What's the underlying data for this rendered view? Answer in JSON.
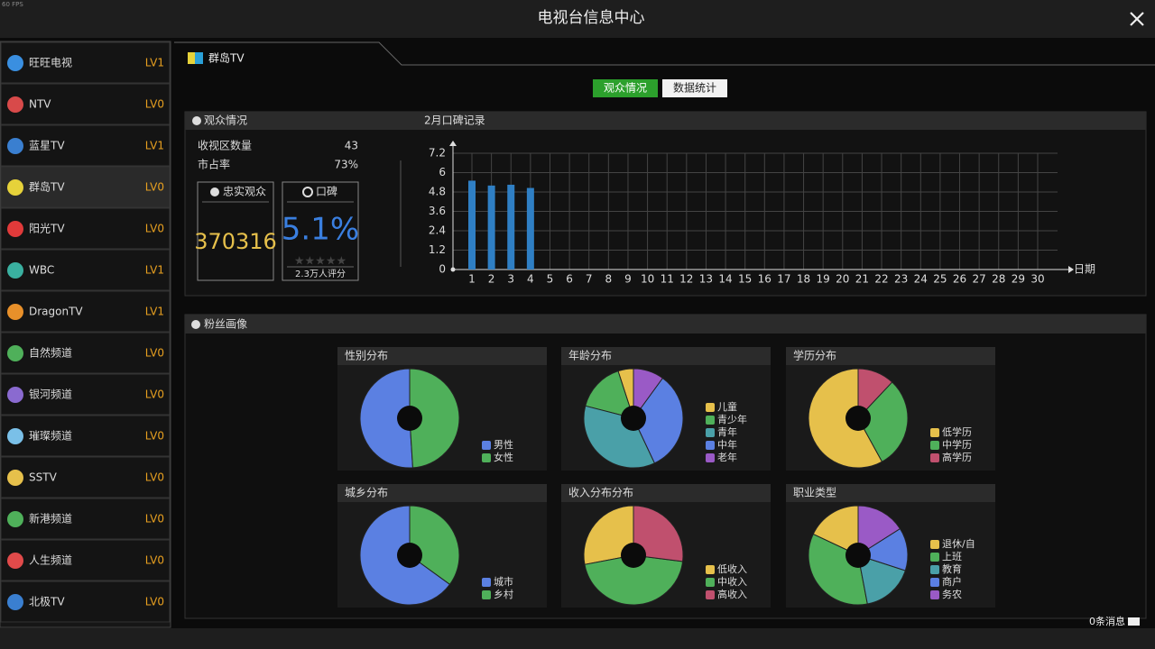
{
  "fps": "60 FPS",
  "header": {
    "title": "电视台信息中心"
  },
  "channels": [
    {
      "name": "旺旺电视",
      "level": "LV1"
    },
    {
      "name": "NTV",
      "level": "LV0"
    },
    {
      "name": "蓝星TV",
      "level": "LV1"
    },
    {
      "name": "群岛TV",
      "level": "LV0"
    },
    {
      "name": "阳光TV",
      "level": "LV0"
    },
    {
      "name": "WBC",
      "level": "LV1"
    },
    {
      "name": "DragonTV",
      "level": "LV1"
    },
    {
      "name": "自然频道",
      "level": "LV0"
    },
    {
      "name": "银河频道",
      "level": "LV0"
    },
    {
      "name": "璀璨频道",
      "level": "LV0"
    },
    {
      "name": "SSTV",
      "level": "LV0"
    },
    {
      "name": "新港频道",
      "level": "LV0"
    },
    {
      "name": "人生频道",
      "level": "LV0"
    },
    {
      "name": "北极TV",
      "level": "LV0"
    }
  ],
  "tab": {
    "title": "群岛TV"
  },
  "buttons": [
    "观众情况",
    "数据统计"
  ],
  "audience": {
    "title": "观众情况",
    "stats": [
      {
        "label": "收视区数量",
        "value": "43"
      },
      {
        "label": "市占率",
        "value": "73%"
      }
    ],
    "loyal": {
      "label": "忠实观众",
      "value": "370316"
    },
    "reputation": {
      "label": "口碑",
      "value": "5.1%",
      "ratings": "2.3万人评分"
    }
  },
  "chart_data": {
    "type": "bar",
    "title": "2月口碑记录",
    "x_label": "日期",
    "categories": [
      "1",
      "2",
      "3",
      "4",
      "5",
      "6",
      "7",
      "8",
      "9",
      "10",
      "11",
      "12",
      "13",
      "14",
      "15",
      "16",
      "17",
      "18",
      "19",
      "20",
      "21",
      "22",
      "23",
      "24",
      "25",
      "26",
      "27",
      "28",
      "29",
      "30"
    ],
    "values": [
      5.5,
      5.2,
      5.25,
      5.05,
      null,
      null,
      null,
      null,
      null,
      null,
      null,
      null,
      null,
      null,
      null,
      null,
      null,
      null,
      null,
      null,
      null,
      null,
      null,
      null,
      null,
      null,
      null,
      null,
      null,
      null
    ],
    "color": "#2f7fc4",
    "ylim": [
      0,
      7.2
    ],
    "yticks": [
      0,
      1.2,
      2.4,
      3.6,
      4.8,
      6,
      7.2
    ],
    "grid": true
  },
  "fan_profile": {
    "title": "粉丝画像",
    "pies": [
      {
        "type": "pie",
        "title": "性别分布",
        "labels": [
          "男性",
          "女性"
        ],
        "values": [
          51,
          49
        ],
        "colors": [
          "#5b80e2",
          "#4fb05a"
        ]
      },
      {
        "type": "pie",
        "title": "年龄分布",
        "labels": [
          "儿童",
          "青少年",
          "青年",
          "中年",
          "老年"
        ],
        "values": [
          5,
          16,
          36,
          33,
          10
        ],
        "colors": [
          "#e6c04b",
          "#4fb05a",
          "#4aa0a8",
          "#5b80e2",
          "#9a5ac6"
        ]
      },
      {
        "type": "pie",
        "title": "学历分布",
        "labels": [
          "低学历",
          "中学历",
          "高学历"
        ],
        "values": [
          58,
          30,
          12
        ],
        "colors": [
          "#e6c04b",
          "#4fb05a",
          "#c0506e"
        ]
      },
      {
        "type": "pie",
        "title": "城乡分布",
        "labels": [
          "城市",
          "乡村"
        ],
        "values": [
          65,
          35
        ],
        "colors": [
          "#5b80e2",
          "#4fb05a"
        ]
      },
      {
        "type": "pie",
        "title": "收入分布分布",
        "labels": [
          "低收入",
          "中收入",
          "高收入"
        ],
        "values": [
          28,
          45,
          27
        ],
        "colors": [
          "#e6c04b",
          "#4fb05a",
          "#c0506e"
        ]
      },
      {
        "type": "pie",
        "title": "职业类型",
        "labels": [
          "退休/自",
          "上班",
          "教育",
          "商户",
          "务农"
        ],
        "values": [
          18,
          35,
          17,
          14,
          16
        ],
        "colors": [
          "#e6c04b",
          "#4fb05a",
          "#4aa0a8",
          "#5b80e2",
          "#9a5ac6"
        ]
      }
    ]
  },
  "footer": {
    "messages": "0条消息"
  }
}
